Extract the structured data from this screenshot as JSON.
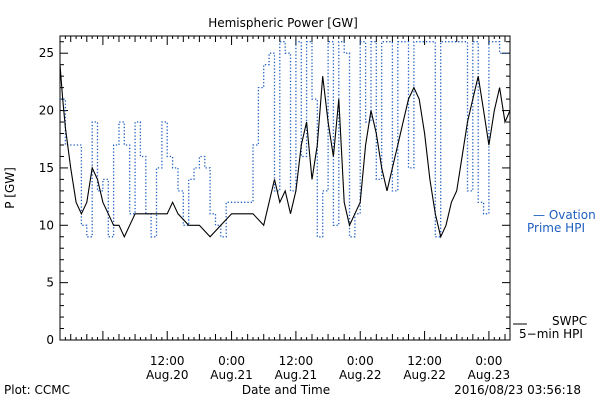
{
  "chart_data": {
    "type": "line",
    "title": "Hemispheric Power [GW]",
    "ylabel": "P [GW]",
    "xlabel": "Date and Time",
    "ylim": [
      0,
      26.5
    ],
    "xlim": [
      "2016-08-19 16:00",
      "2016-08-23 03:56"
    ],
    "yticks": [
      0,
      5,
      10,
      15,
      20,
      25
    ],
    "xticks": [
      {
        "time": "2016-08-20 12:00",
        "line1": "12:00",
        "line2": "Aug.20"
      },
      {
        "time": "2016-08-21 00:00",
        "line1": "0:00",
        "line2": "Aug.21"
      },
      {
        "time": "2016-08-21 12:00",
        "line1": "12:00",
        "line2": "Aug.21"
      },
      {
        "time": "2016-08-22 00:00",
        "line1": "0:00",
        "line2": "Aug.22"
      },
      {
        "time": "2016-08-22 12:00",
        "line1": "12:00",
        "line2": "Aug.22"
      },
      {
        "time": "2016-08-23 00:00",
        "line1": "0:00",
        "line2": "Aug.23"
      }
    ],
    "grid": false,
    "series": [
      {
        "name": "SWPC 5-min HPI",
        "legend_line1": "SWPC",
        "legend_line2": "5−min HPI",
        "style": "solid",
        "color": "#000000",
        "points": [
          [
            "2016-08-19 16:00",
            24
          ],
          [
            "2016-08-19 16:30",
            21
          ],
          [
            "2016-08-19 17:00",
            18.5
          ],
          [
            "2016-08-19 18:00",
            15
          ],
          [
            "2016-08-19 19:00",
            12
          ],
          [
            "2016-08-19 20:00",
            11
          ],
          [
            "2016-08-19 21:00",
            12
          ],
          [
            "2016-08-19 22:00",
            15
          ],
          [
            "2016-08-19 23:00",
            14
          ],
          [
            "2016-08-20 00:00",
            12
          ],
          [
            "2016-08-20 01:00",
            11
          ],
          [
            "2016-08-20 02:00",
            10
          ],
          [
            "2016-08-20 03:00",
            10
          ],
          [
            "2016-08-20 04:00",
            9
          ],
          [
            "2016-08-20 05:00",
            10
          ],
          [
            "2016-08-20 06:00",
            11
          ],
          [
            "2016-08-20 08:00",
            11
          ],
          [
            "2016-08-20 10:00",
            11
          ],
          [
            "2016-08-20 12:00",
            11
          ],
          [
            "2016-08-20 13:00",
            12
          ],
          [
            "2016-08-20 14:00",
            11
          ],
          [
            "2016-08-20 16:00",
            10
          ],
          [
            "2016-08-20 18:00",
            10
          ],
          [
            "2016-08-20 20:00",
            9
          ],
          [
            "2016-08-20 22:00",
            10
          ],
          [
            "2016-08-21 00:00",
            11
          ],
          [
            "2016-08-21 02:00",
            11
          ],
          [
            "2016-08-21 04:00",
            11
          ],
          [
            "2016-08-21 06:00",
            10
          ],
          [
            "2016-08-21 07:00",
            12
          ],
          [
            "2016-08-21 08:00",
            14
          ],
          [
            "2016-08-21 09:00",
            12
          ],
          [
            "2016-08-21 10:00",
            13
          ],
          [
            "2016-08-21 11:00",
            11
          ],
          [
            "2016-08-21 12:00",
            13
          ],
          [
            "2016-08-21 13:00",
            17
          ],
          [
            "2016-08-21 14:00",
            19
          ],
          [
            "2016-08-21 15:00",
            14
          ],
          [
            "2016-08-21 16:00",
            17
          ],
          [
            "2016-08-21 17:00",
            23
          ],
          [
            "2016-08-21 18:00",
            19
          ],
          [
            "2016-08-21 19:00",
            16
          ],
          [
            "2016-08-21 20:00",
            21
          ],
          [
            "2016-08-21 21:00",
            12
          ],
          [
            "2016-08-21 22:00",
            10
          ],
          [
            "2016-08-22 00:00",
            12
          ],
          [
            "2016-08-22 01:00",
            17
          ],
          [
            "2016-08-22 02:00",
            20
          ],
          [
            "2016-08-22 03:00",
            18
          ],
          [
            "2016-08-22 04:00",
            15
          ],
          [
            "2016-08-22 05:00",
            13
          ],
          [
            "2016-08-22 06:00",
            15
          ],
          [
            "2016-08-22 07:00",
            17
          ],
          [
            "2016-08-22 08:00",
            19
          ],
          [
            "2016-08-22 09:00",
            21
          ],
          [
            "2016-08-22 10:00",
            22
          ],
          [
            "2016-08-22 11:00",
            21
          ],
          [
            "2016-08-22 12:00",
            18
          ],
          [
            "2016-08-22 13:00",
            14
          ],
          [
            "2016-08-22 14:00",
            11
          ],
          [
            "2016-08-22 15:00",
            9
          ],
          [
            "2016-08-22 16:00",
            10
          ],
          [
            "2016-08-22 17:00",
            12
          ],
          [
            "2016-08-22 18:00",
            13
          ],
          [
            "2016-08-22 19:00",
            16
          ],
          [
            "2016-08-22 20:00",
            19
          ],
          [
            "2016-08-22 21:00",
            21
          ],
          [
            "2016-08-22 22:00",
            23
          ],
          [
            "2016-08-22 23:00",
            20
          ],
          [
            "2016-08-23 00:00",
            17
          ],
          [
            "2016-08-23 01:00",
            20
          ],
          [
            "2016-08-23 02:00",
            22
          ],
          [
            "2016-08-23 03:00",
            19
          ],
          [
            "2016-08-23 03:56",
            20
          ]
        ]
      },
      {
        "name": "Ovation Prime HPI",
        "legend_line1": "— Ovation",
        "legend_line2": "Prime HPI",
        "style": "dotted",
        "color": "#1f5fbf",
        "points": [
          [
            "2016-08-19 16:00",
            21
          ],
          [
            "2016-08-19 17:00",
            17
          ],
          [
            "2016-08-19 20:00",
            10
          ],
          [
            "2016-08-19 21:00",
            9
          ],
          [
            "2016-08-19 22:00",
            19
          ],
          [
            "2016-08-19 23:00",
            13
          ],
          [
            "2016-08-20 00:00",
            14
          ],
          [
            "2016-08-20 01:00",
            9
          ],
          [
            "2016-08-20 02:00",
            17
          ],
          [
            "2016-08-20 03:00",
            19
          ],
          [
            "2016-08-20 04:00",
            17
          ],
          [
            "2016-08-20 05:00",
            11
          ],
          [
            "2016-08-20 06:00",
            19
          ],
          [
            "2016-08-20 07:00",
            16
          ],
          [
            "2016-08-20 08:00",
            11
          ],
          [
            "2016-08-20 09:00",
            9
          ],
          [
            "2016-08-20 10:00",
            15
          ],
          [
            "2016-08-20 11:00",
            19
          ],
          [
            "2016-08-20 12:00",
            16
          ],
          [
            "2016-08-20 13:00",
            15
          ],
          [
            "2016-08-20 14:00",
            13
          ],
          [
            "2016-08-20 15:00",
            10
          ],
          [
            "2016-08-20 16:00",
            14
          ],
          [
            "2016-08-20 17:00",
            15
          ],
          [
            "2016-08-20 18:00",
            16
          ],
          [
            "2016-08-20 19:00",
            15
          ],
          [
            "2016-08-20 20:00",
            11
          ],
          [
            "2016-08-20 21:00",
            10
          ],
          [
            "2016-08-20 22:00",
            9
          ],
          [
            "2016-08-20 23:00",
            12
          ],
          [
            "2016-08-21 00:00",
            12
          ],
          [
            "2016-08-21 01:00",
            12
          ],
          [
            "2016-08-21 02:00",
            12
          ],
          [
            "2016-08-21 03:00",
            12
          ],
          [
            "2016-08-21 04:00",
            17
          ],
          [
            "2016-08-21 05:00",
            22
          ],
          [
            "2016-08-21 06:00",
            24
          ],
          [
            "2016-08-21 07:00",
            25
          ],
          [
            "2016-08-21 08:00",
            13
          ],
          [
            "2016-08-21 09:00",
            26
          ],
          [
            "2016-08-21 10:00",
            25
          ],
          [
            "2016-08-21 11:00",
            13
          ],
          [
            "2016-08-21 12:00",
            26
          ],
          [
            "2016-08-21 13:00",
            16
          ],
          [
            "2016-08-21 14:00",
            26
          ],
          [
            "2016-08-21 15:00",
            21
          ],
          [
            "2016-08-21 16:00",
            9
          ],
          [
            "2016-08-21 17:00",
            13
          ],
          [
            "2016-08-21 18:00",
            26
          ],
          [
            "2016-08-21 19:00",
            10
          ],
          [
            "2016-08-21 20:00",
            26
          ],
          [
            "2016-08-21 21:00",
            25
          ],
          [
            "2016-08-21 22:00",
            9
          ],
          [
            "2016-08-21 23:00",
            11
          ],
          [
            "2016-08-22 00:00",
            26
          ],
          [
            "2016-08-22 01:00",
            19
          ],
          [
            "2016-08-22 02:00",
            26
          ],
          [
            "2016-08-22 03:00",
            14
          ],
          [
            "2016-08-22 04:00",
            26
          ],
          [
            "2016-08-22 05:00",
            26
          ],
          [
            "2016-08-22 06:00",
            13
          ],
          [
            "2016-08-22 07:00",
            26
          ],
          [
            "2016-08-22 08:00",
            26
          ],
          [
            "2016-08-22 09:00",
            15
          ],
          [
            "2016-08-22 10:00",
            26
          ],
          [
            "2016-08-22 11:00",
            26
          ],
          [
            "2016-08-22 12:00",
            26
          ],
          [
            "2016-08-22 13:00",
            26
          ],
          [
            "2016-08-22 14:00",
            9
          ],
          [
            "2016-08-22 15:00",
            26
          ],
          [
            "2016-08-22 16:00",
            26
          ],
          [
            "2016-08-22 17:00",
            26
          ],
          [
            "2016-08-22 18:00",
            26
          ],
          [
            "2016-08-22 19:00",
            26
          ],
          [
            "2016-08-22 20:00",
            13
          ],
          [
            "2016-08-22 21:00",
            26
          ],
          [
            "2016-08-22 22:00",
            12
          ],
          [
            "2016-08-22 23:00",
            11
          ],
          [
            "2016-08-23 00:00",
            26
          ],
          [
            "2016-08-23 01:00",
            26
          ],
          [
            "2016-08-23 02:00",
            25
          ],
          [
            "2016-08-23 03:00",
            25
          ],
          [
            "2016-08-23 03:56",
            25
          ]
        ]
      }
    ]
  },
  "footer": {
    "left": "Plot: CCMC",
    "center": "Date and Time",
    "right": "2016/08/23 03:56:18"
  }
}
